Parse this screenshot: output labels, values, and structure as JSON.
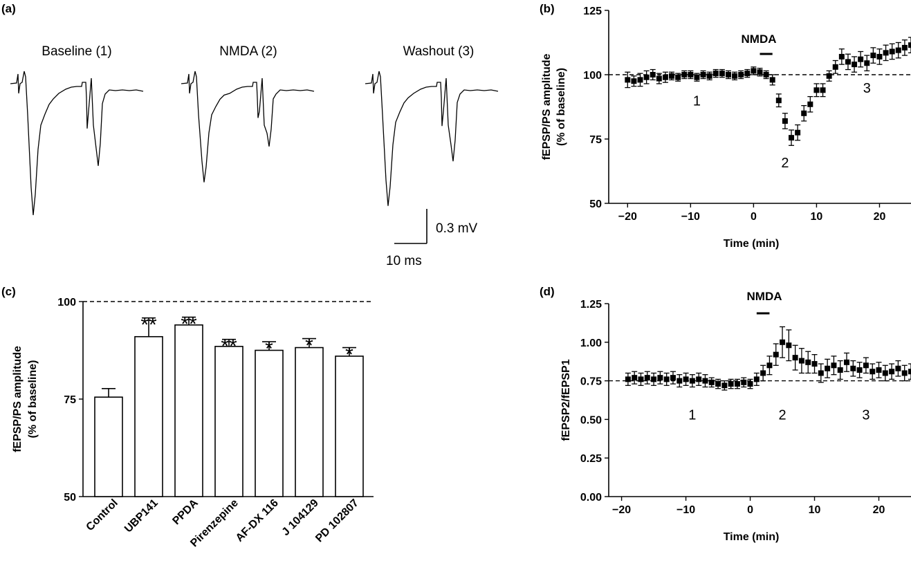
{
  "colors": {
    "ink": "#000000",
    "background": "#ffffff"
  },
  "chart_data": [
    {
      "panel": "(a)",
      "type": "line",
      "traces": [
        {
          "label": "Baseline (1)",
          "ps1_depth": 1.0,
          "ps2_depth": 0.72
        },
        {
          "label": "NMDA (2)",
          "ps1_depth": 0.75,
          "ps2_depth": 0.55
        },
        {
          "label": "Washout (3)",
          "ps1_depth": 0.93,
          "ps2_depth": 0.68
        }
      ],
      "scale_bar": {
        "voltage_label": "0.3 mV",
        "time_label": "10 ms"
      }
    },
    {
      "panel": "(b)",
      "type": "scatter",
      "xlabel": "Time (min)",
      "ylabel": [
        "fEPSP/PS amplitude",
        "(% of baseline)"
      ],
      "xlim": [
        -23,
        25
      ],
      "ylim": [
        50,
        125
      ],
      "xticks": [
        -20,
        -10,
        0,
        10,
        20
      ],
      "yticks": [
        50,
        75,
        100,
        125
      ],
      "reference_line": 100,
      "bar_label": "NMDA",
      "bar_range": [
        1,
        3
      ],
      "period_labels": [
        {
          "text": "1",
          "x": -9,
          "y": 88
        },
        {
          "text": "2",
          "x": 5,
          "y": 64
        },
        {
          "text": "3",
          "x": 18,
          "y": 93
        }
      ],
      "x": [
        -20,
        -19,
        -18,
        -17,
        -16,
        -15,
        -14,
        -13,
        -12,
        -11,
        -10,
        -9,
        -8,
        -7,
        -6,
        -5,
        -4,
        -3,
        -2,
        -1,
        0,
        1,
        2,
        3,
        4,
        5,
        6,
        7,
        8,
        9,
        10,
        11,
        12,
        13,
        14,
        15,
        16,
        17,
        18,
        19,
        20,
        21,
        22,
        23,
        24,
        25
      ],
      "y": [
        98,
        97.5,
        98,
        99,
        100,
        98.5,
        99,
        99.5,
        99,
        100,
        100,
        99,
        100,
        99.5,
        100.5,
        100.5,
        100,
        99.5,
        100,
        100.5,
        101.5,
        101,
        100,
        98,
        90,
        82,
        75.5,
        77.5,
        85,
        88.5,
        94,
        94,
        99.5,
        103,
        107,
        105,
        104,
        106,
        104.5,
        107.5,
        107,
        108.5,
        109,
        109.5,
        110.5,
        111.5
      ],
      "err": [
        3,
        2,
        2.5,
        2.5,
        2,
        2,
        2,
        1.5,
        1.5,
        1.5,
        1.5,
        1.5,
        1.5,
        1.5,
        1.5,
        1.5,
        1.5,
        1.5,
        1.5,
        1.5,
        1.5,
        1.5,
        1.5,
        2,
        2.5,
        3,
        3,
        3,
        3,
        3,
        2.5,
        2.5,
        2,
        2.5,
        3,
        3,
        3,
        3,
        3,
        3,
        3,
        3,
        3,
        3,
        3,
        3
      ]
    },
    {
      "panel": "(c)",
      "type": "bar",
      "ylabel": [
        "fEPSP/PS amplitude",
        "(% of baseline)"
      ],
      "ylim": [
        50,
        100
      ],
      "yticks": [
        50,
        75,
        100
      ],
      "reference_line": 100,
      "categories": [
        "Control",
        "UBP141",
        "PPDA",
        "Pirenzepine",
        "AF-DX 116",
        "J 104129",
        "PD 102807"
      ],
      "values": [
        75.5,
        91,
        94,
        88.5,
        87.5,
        88.2,
        86
      ],
      "err": [
        2.2,
        4.8,
        2.0,
        1.8,
        2.2,
        2.3,
        2.2
      ],
      "significance": [
        "",
        "**",
        "**",
        "**",
        "*",
        "*",
        "*"
      ]
    },
    {
      "panel": "(d)",
      "type": "scatter",
      "xlabel": "Time (min)",
      "ylabel": [
        "fEPSP2/fEPSP1"
      ],
      "xlim": [
        -22,
        25
      ],
      "ylim": [
        0,
        1.25
      ],
      "xticks": [
        -20,
        -10,
        0,
        10,
        20
      ],
      "yticks": [
        "0.00",
        "0.25",
        "0.50",
        "0.75",
        "1.00",
        "1.25"
      ],
      "reference_line": 0.75,
      "bar_label": "NMDA",
      "bar_range": [
        1,
        3
      ],
      "period_labels": [
        {
          "text": "1",
          "x": -9,
          "y": 0.5
        },
        {
          "text": "2",
          "x": 5,
          "y": 0.5
        },
        {
          "text": "3",
          "x": 18,
          "y": 0.5
        }
      ],
      "x": [
        -19,
        -18,
        -17,
        -16,
        -15,
        -14,
        -13,
        -12,
        -11,
        -10,
        -9,
        -8,
        -7,
        -6,
        -5,
        -4,
        -3,
        -2,
        -1,
        0,
        1,
        2,
        3,
        4,
        5,
        6,
        7,
        8,
        9,
        10,
        11,
        12,
        13,
        14,
        15,
        16,
        17,
        18,
        19,
        20,
        21,
        22,
        23,
        24,
        25
      ],
      "y": [
        0.76,
        0.77,
        0.76,
        0.77,
        0.76,
        0.77,
        0.76,
        0.77,
        0.75,
        0.76,
        0.75,
        0.76,
        0.75,
        0.74,
        0.73,
        0.72,
        0.73,
        0.73,
        0.74,
        0.73,
        0.76,
        0.8,
        0.85,
        0.92,
        1.0,
        0.98,
        0.9,
        0.88,
        0.87,
        0.86,
        0.8,
        0.83,
        0.85,
        0.82,
        0.87,
        0.83,
        0.82,
        0.85,
        0.81,
        0.82,
        0.8,
        0.81,
        0.83,
        0.8,
        0.81
      ],
      "err": [
        0.04,
        0.04,
        0.04,
        0.04,
        0.04,
        0.04,
        0.04,
        0.04,
        0.04,
        0.04,
        0.04,
        0.04,
        0.04,
        0.03,
        0.03,
        0.03,
        0.03,
        0.03,
        0.03,
        0.03,
        0.04,
        0.05,
        0.06,
        0.07,
        0.1,
        0.1,
        0.08,
        0.08,
        0.07,
        0.06,
        0.06,
        0.06,
        0.06,
        0.06,
        0.06,
        0.05,
        0.05,
        0.05,
        0.05,
        0.05,
        0.05,
        0.05,
        0.05,
        0.05,
        0.05
      ]
    }
  ]
}
